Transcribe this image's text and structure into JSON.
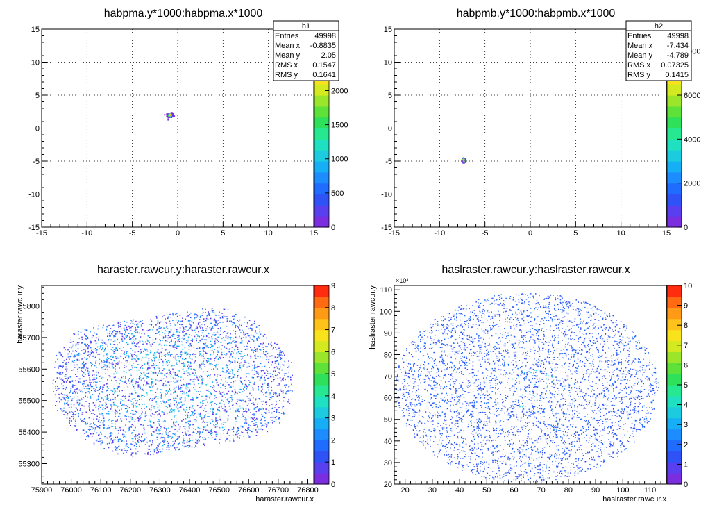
{
  "chart_data": [
    {
      "type": "heatmap",
      "title": "habpma.y*1000:habpma.x*1000",
      "xlabel": "",
      "ylabel": "",
      "xlim": [
        -15,
        15
      ],
      "ylim": [
        -15,
        15
      ],
      "xticks": [
        "-15",
        "-10",
        "-5",
        "0",
        "5",
        "10",
        "15"
      ],
      "yticks": [
        "-15",
        "-10",
        "-5",
        "0",
        "5",
        "10",
        "15"
      ],
      "grid": true,
      "colorbar": {
        "min": 0,
        "max": 2900,
        "ticks": [
          "0",
          "500",
          "1000",
          "1500",
          "2000"
        ]
      },
      "stats": {
        "name": "h1",
        "rows": [
          {
            "label": "Entries",
            "value": "49998"
          },
          {
            "label": "Mean x",
            "value": "-0.8835"
          },
          {
            "label": "Mean y",
            "value": "2.05"
          },
          {
            "label": "RMS x",
            "value": "0.1547"
          },
          {
            "label": "RMS y",
            "value": "0.1641"
          }
        ]
      },
      "distribution": {
        "center": [
          -0.8835,
          2.05
        ],
        "rms": [
          0.1547,
          0.1641
        ],
        "entries": 49998
      }
    },
    {
      "type": "heatmap",
      "title": "habpmb.y*1000:habpmb.x*1000",
      "xlabel": "",
      "ylabel": "",
      "xlim": [
        -15,
        15
      ],
      "ylim": [
        -15,
        15
      ],
      "xticks": [
        "-15",
        "-10",
        "-5",
        "0",
        "5",
        "10",
        "15"
      ],
      "yticks": [
        "-15",
        "-10",
        "-5",
        "0",
        "5",
        "10",
        "15"
      ],
      "grid": true,
      "colorbar": {
        "min": 0,
        "max": 9000,
        "ticks": [
          "0",
          "2000",
          "4000",
          "6000",
          "8000"
        ]
      },
      "stats": {
        "name": "h2",
        "rows": [
          {
            "label": "Entries",
            "value": "49998"
          },
          {
            "label": "Mean x",
            "value": "-7.434"
          },
          {
            "label": "Mean y",
            "value": "-4.789"
          },
          {
            "label": "RMS x",
            "value": "0.07325"
          },
          {
            "label": "RMS y",
            "value": "0.1415"
          }
        ]
      },
      "distribution": {
        "center": [
          -7.434,
          -4.789
        ],
        "rms": [
          0.07325,
          0.1415
        ],
        "entries": 49998
      }
    },
    {
      "type": "heatmap",
      "title": "haraster.rawcur.y:haraster.rawcur.x",
      "xlabel": "haraster.rawcur.x",
      "ylabel": "haraster.rawcur.y",
      "xlim": [
        75900,
        76820
      ],
      "ylim": [
        55235,
        55865
      ],
      "xticks": [
        "75900",
        "76000",
        "76100",
        "76200",
        "76300",
        "76400",
        "76500",
        "76600",
        "76700",
        "76800"
      ],
      "yticks": [
        "55300",
        "55400",
        "55500",
        "55600",
        "55700",
        "55800"
      ],
      "grid": false,
      "colorbar": {
        "min": 0,
        "max": 9,
        "ticks": [
          "0",
          "1",
          "2",
          "3",
          "4",
          "5",
          "6",
          "7",
          "8",
          "9"
        ]
      },
      "distribution": {
        "shape": "tilted-ellipse",
        "center": [
          76340,
          55560
        ],
        "range_x": [
          75955,
          76770
        ],
        "range_y": [
          55270,
          55830
        ]
      }
    },
    {
      "type": "heatmap",
      "title": "haslraster.rawcur.y:haslraster.rawcur.x",
      "xlabel": "haslraster.rawcur.x",
      "ylabel": "haslraster.rawcur.y",
      "xlim": [
        16,
        116
      ],
      "ylim": [
        20,
        112
      ],
      "xexponent": "",
      "yexponent": "×10³",
      "xticks": [
        "20",
        "30",
        "40",
        "50",
        "60",
        "70",
        "80",
        "90",
        "100",
        "110"
      ],
      "yticks": [
        "20",
        "30",
        "40",
        "50",
        "60",
        "70",
        "80",
        "90",
        "100",
        "110"
      ],
      "grid": false,
      "colorbar": {
        "min": 0,
        "max": 10,
        "ticks": [
          "0",
          "1",
          "2",
          "3",
          "4",
          "5",
          "6",
          "7",
          "8",
          "9",
          "10"
        ]
      },
      "distribution": {
        "shape": "ellipse",
        "center": [
          64.5,
          65
        ],
        "range_x": [
          16,
          113
        ],
        "range_y": [
          22,
          110
        ]
      }
    }
  ]
}
